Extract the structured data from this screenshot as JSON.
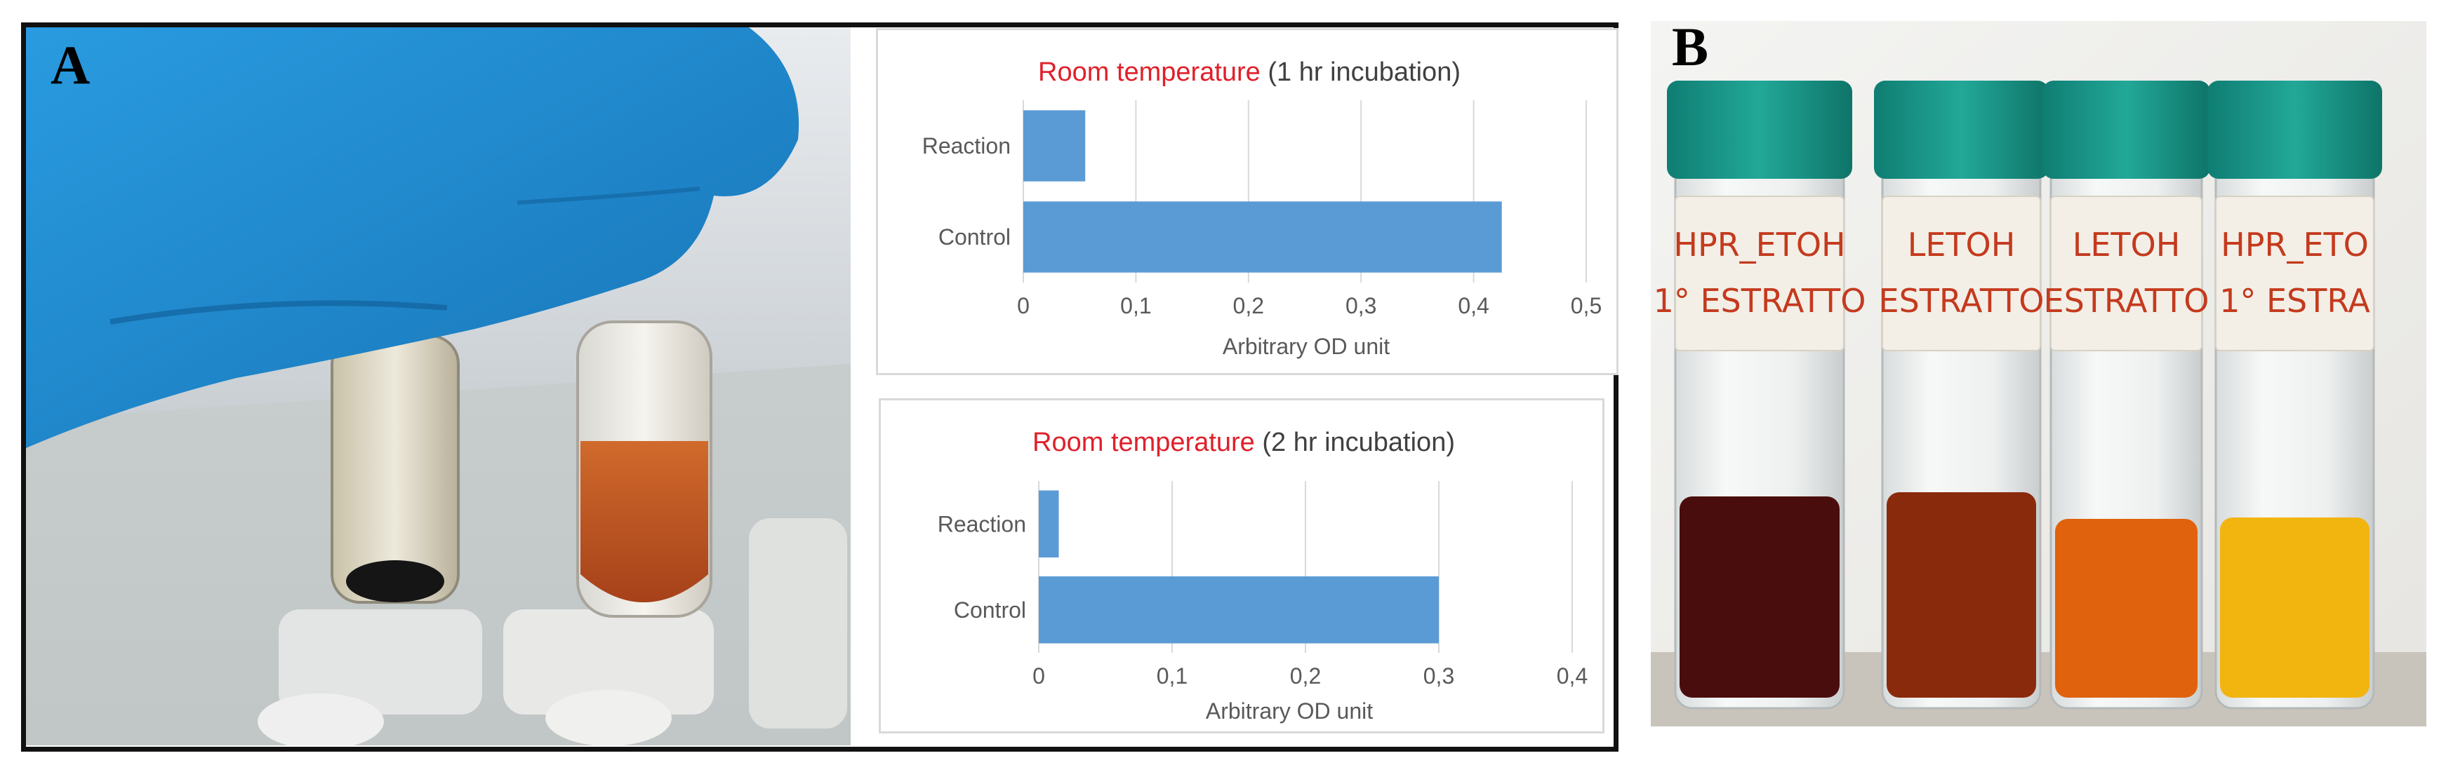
{
  "panels": {
    "a_label": "A",
    "b_label": "B"
  },
  "chart_data": [
    {
      "type": "bar",
      "orientation": "horizontal",
      "title_highlight": "Room temperature",
      "title_rest": " (1 hr incubation)",
      "categories": [
        "Reaction",
        "Control"
      ],
      "values": [
        0.055,
        0.425
      ],
      "xlabel": "Arbitrary OD unit",
      "ylabel": "",
      "xlim": [
        0,
        0.5
      ],
      "ticks": [
        "0",
        "0,1",
        "0,2",
        "0,3",
        "0,4",
        "0,5"
      ],
      "grid": true,
      "bar_color": "#5b9bd5",
      "title_highlight_color": "#e0202a"
    },
    {
      "type": "bar",
      "orientation": "horizontal",
      "title_highlight": "Room temperature",
      "title_rest": " (2 hr incubation)",
      "categories": [
        "Reaction",
        "Control"
      ],
      "values": [
        0.015,
        0.3
      ],
      "xlabel": "Arbitrary OD unit",
      "ylabel": "",
      "xlim": [
        0,
        0.4
      ],
      "ticks": [
        "0",
        "0,1",
        "0,2",
        "0,3",
        "0,4"
      ],
      "grid": true,
      "bar_color": "#5b9bd5",
      "title_highlight_color": "#e0202a"
    }
  ],
  "vial_labels": [
    [
      "HPR_ETOH",
      "1° ESTRATTO"
    ],
    [
      "LETOH",
      "ESTRATTO"
    ],
    [
      "LETOH",
      "ESTRATTO"
    ],
    [
      "HPR_ETO",
      "1° ESTRA"
    ]
  ],
  "colors": {
    "glove": "#1f8fd6",
    "cap": "#138f82",
    "liquid": [
      "#4a0d0d",
      "#8a2a0c",
      "#e0620c",
      "#f2b40f"
    ]
  }
}
